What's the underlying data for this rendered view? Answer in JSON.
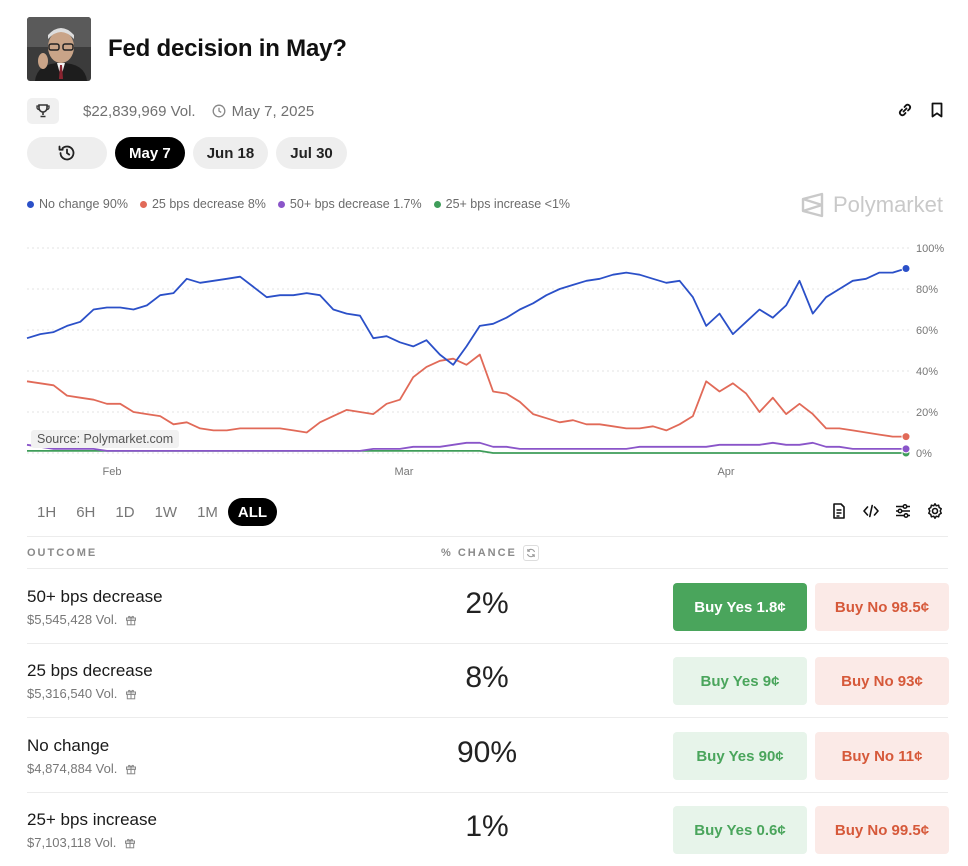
{
  "market": {
    "title": "Fed decision in May?",
    "volume": "$22,839,969 Vol.",
    "date": "May 7, 2025"
  },
  "date_tabs": [
    "May 7",
    "Jun 18",
    "Jul 30"
  ],
  "legend": [
    {
      "label": "No change 90%",
      "color": "#2b50c8"
    },
    {
      "label": "25 bps decrease 8%",
      "color": "#e16a58"
    },
    {
      "label": "50+ bps decrease 1.7%",
      "color": "#8a55c9"
    },
    {
      "label": "25+ bps increase <1%",
      "color": "#3f9d5a"
    }
  ],
  "brand": "Polymarket",
  "source": "Source: Polymarket.com",
  "time_ranges": [
    "1H",
    "6H",
    "1D",
    "1W",
    "1M",
    "ALL"
  ],
  "table": {
    "outcome_header": "OUTCOME",
    "chance_header": "% CHANCE",
    "rows": [
      {
        "name": "50+ bps decrease",
        "volume": "$5,545,428 Vol.",
        "chance": "2%",
        "yes": "Buy Yes 1.8¢",
        "no": "Buy No 98.5¢"
      },
      {
        "name": "25 bps decrease",
        "volume": "$5,316,540 Vol.",
        "chance": "8%",
        "yes": "Buy Yes 9¢",
        "no": "Buy No 93¢"
      },
      {
        "name": "No change",
        "volume": "$4,874,884 Vol.",
        "chance": "90%",
        "yes": "Buy Yes 90¢",
        "no": "Buy No 11¢"
      },
      {
        "name": "25+ bps increase",
        "volume": "$7,103,118 Vol.",
        "chance": "1%",
        "yes": "Buy Yes 0.6¢",
        "no": "Buy No 99.5¢"
      }
    ]
  },
  "chart_data": {
    "type": "line",
    "x_ticks": [
      "Feb",
      "Mar",
      "Apr"
    ],
    "y_ticks": [
      "100%",
      "80%",
      "60%",
      "40%",
      "20%",
      "0%"
    ],
    "ylim": [
      0,
      100
    ],
    "grid": true,
    "series": [
      {
        "name": "No change",
        "color": "#2b50c8",
        "values": [
          56,
          58,
          59,
          62,
          64,
          70,
          71,
          71,
          70,
          72,
          77,
          78,
          85,
          83,
          84,
          85,
          86,
          81,
          76,
          77,
          77,
          78,
          77,
          70,
          68,
          67,
          56,
          57,
          54,
          52,
          55,
          48,
          43,
          52,
          62,
          63,
          66,
          70,
          73,
          77,
          80,
          82,
          84,
          85,
          87,
          88,
          87,
          85,
          83,
          84,
          76,
          62,
          68,
          58,
          64,
          70,
          66,
          72,
          84,
          68,
          76,
          80,
          84,
          85,
          88,
          88,
          90
        ]
      },
      {
        "name": "25 bps decrease",
        "color": "#e16a58",
        "values": [
          35,
          34,
          33,
          28,
          27,
          26,
          24,
          24,
          20,
          19,
          18,
          14,
          15,
          12,
          11,
          11,
          12,
          12,
          12,
          12,
          11,
          10,
          15,
          18,
          21,
          20,
          19,
          24,
          26,
          37,
          42,
          45,
          46,
          43,
          48,
          30,
          29,
          25,
          19,
          17,
          15,
          16,
          14,
          14,
          13,
          12,
          12,
          13,
          11,
          14,
          18,
          35,
          30,
          34,
          29,
          20,
          27,
          19,
          24,
          19,
          12,
          12,
          11,
          10,
          9,
          8,
          8
        ]
      },
      {
        "name": "50+ bps decrease",
        "color": "#8a55c9",
        "values": [
          4,
          3,
          2,
          2,
          2,
          2,
          1,
          1,
          1,
          1,
          1,
          1,
          1,
          1,
          1,
          1,
          1,
          1,
          1,
          1,
          1,
          1,
          1,
          1,
          1,
          1,
          2,
          2,
          2,
          3,
          3,
          3,
          4,
          5,
          5,
          3,
          3,
          2,
          2,
          2,
          2,
          2,
          2,
          2,
          2,
          2,
          3,
          3,
          3,
          3,
          3,
          3,
          4,
          4,
          4,
          4,
          5,
          4,
          4,
          5,
          3,
          3,
          2,
          2,
          2,
          2,
          2
        ]
      },
      {
        "name": "25+ bps increase",
        "color": "#3f9d5a",
        "values": [
          1,
          1,
          1,
          1,
          1,
          1,
          1,
          1,
          1,
          1,
          1,
          1,
          1,
          1,
          1,
          1,
          1,
          1,
          1,
          1,
          1,
          1,
          1,
          1,
          1,
          1,
          1,
          1,
          1,
          1,
          1,
          1,
          1,
          1,
          1,
          0,
          0,
          0,
          0,
          0,
          0,
          0,
          0,
          0,
          0,
          0,
          0,
          0,
          0,
          0,
          0,
          0,
          0,
          0,
          0,
          0,
          0,
          0,
          0,
          0,
          0,
          0,
          0,
          0,
          0,
          0,
          0
        ]
      }
    ]
  }
}
